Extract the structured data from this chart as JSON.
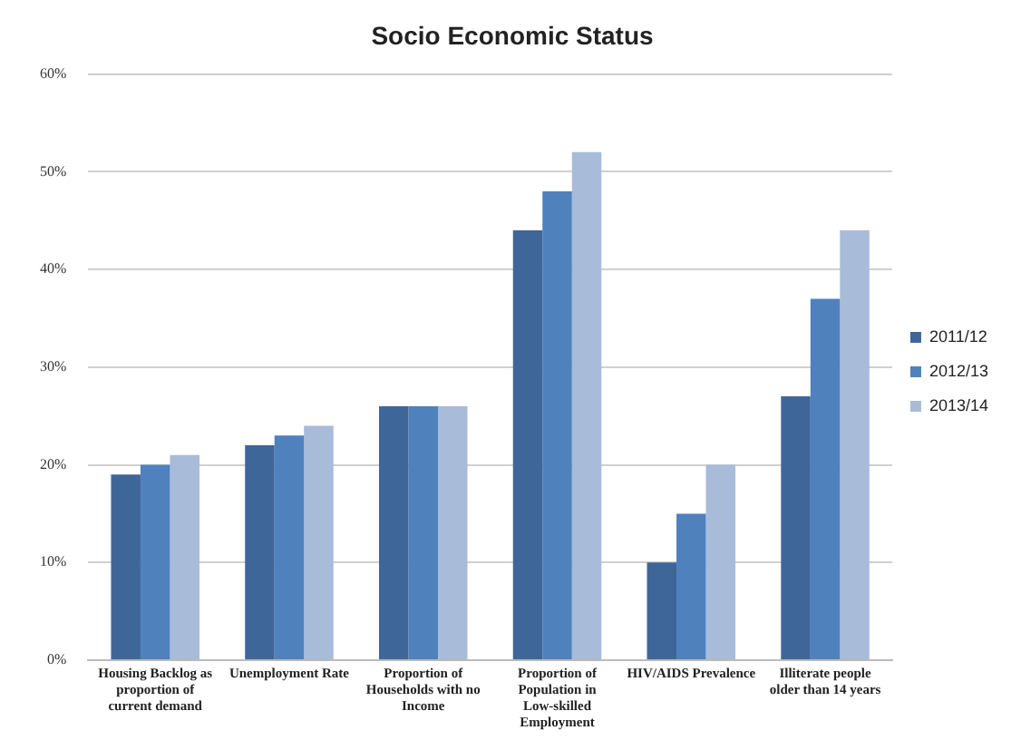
{
  "chart_data": {
    "type": "bar",
    "title": "Socio Economic Status",
    "categories": [
      "Housing Backlog as proportion of current demand",
      "Unemployment Rate",
      "Proportion of Households with no Income",
      "Proportion of Population in Low-skilled Employment",
      "HIV/AIDS Prevalence",
      "Illiterate people older than 14 years"
    ],
    "series": [
      {
        "name": "2011/12",
        "color": "#3f6699",
        "values": [
          19,
          22,
          26,
          44,
          10,
          27
        ]
      },
      {
        "name": "2012/13",
        "color": "#4f81bd",
        "values": [
          20,
          23,
          26,
          48,
          15,
          37
        ]
      },
      {
        "name": "2013/14",
        "color": "#a8bbd9",
        "values": [
          21,
          24,
          26,
          52,
          20,
          44
        ]
      }
    ],
    "ylim": [
      0,
      60
    ],
    "yticks": [
      {
        "value": 0,
        "label": "0%"
      },
      {
        "value": 10,
        "label": "10%"
      },
      {
        "value": 20,
        "label": "20%"
      },
      {
        "value": 30,
        "label": "30%"
      },
      {
        "value": 40,
        "label": "40%"
      },
      {
        "value": 50,
        "label": "50%"
      },
      {
        "value": 60,
        "label": "60%"
      }
    ],
    "grid": "y",
    "legend": "right"
  }
}
